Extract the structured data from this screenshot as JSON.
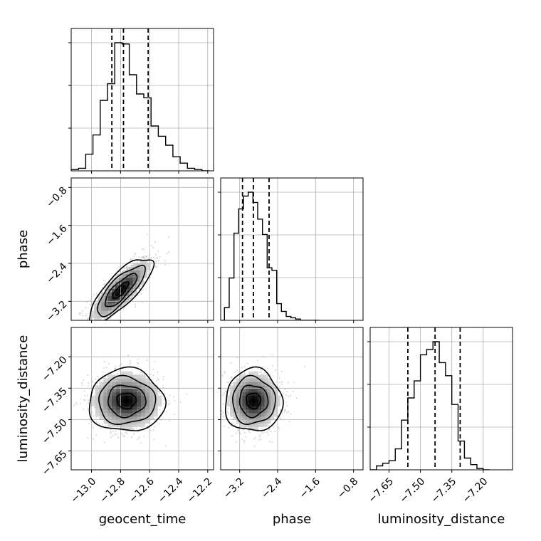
{
  "chart_data": {
    "type": "corner",
    "parameters": [
      "geocent_time",
      "phase",
      "luminosity_distance"
    ],
    "ranges": {
      "geocent_time": [
        -13.14,
        -12.16
      ],
      "phase": [
        -3.6,
        -0.6
      ],
      "luminosity_distance": [
        -7.74,
        -7.06
      ]
    },
    "ticks": {
      "geocent_time": {
        "values": [
          -13.0,
          -12.8,
          -12.6,
          -12.4,
          -12.2
        ],
        "labels": [
          "−13.0",
          "−12.8",
          "−12.6",
          "−12.4",
          "−12.2"
        ]
      },
      "phase": {
        "values": [
          -3.2,
          -2.4,
          -1.6,
          -0.8
        ],
        "labels": [
          "−3.2",
          "−2.4",
          "−1.6",
          "−0.8"
        ]
      },
      "luminosity_distance": {
        "values": [
          -7.65,
          -7.5,
          -7.35,
          -7.2
        ],
        "labels": [
          "−7.65",
          "−7.50",
          "−7.35",
          "−7.20"
        ]
      }
    },
    "quantile_lines": {
      "geocent_time": [
        -12.86,
        -12.78,
        -12.61
      ],
      "phase": [
        -3.14,
        -2.91,
        -2.58
      ],
      "luminosity_distance": [
        -7.56,
        -7.43,
        -7.31
      ]
    },
    "histograms": {
      "geocent_time": {
        "edges": [
          -13.14,
          -13.09,
          -13.04,
          -12.99,
          -12.94,
          -12.89,
          -12.84,
          -12.79,
          -12.74,
          -12.69,
          -12.64,
          -12.59,
          -12.54,
          -12.49,
          -12.44,
          -12.39,
          -12.34,
          -12.29,
          -12.24,
          -12.19
        ],
        "counts": [
          0.01,
          0.02,
          0.13,
          0.28,
          0.55,
          0.68,
          1.0,
          0.99,
          0.75,
          0.6,
          0.57,
          0.35,
          0.27,
          0.2,
          0.11,
          0.06,
          0.02,
          0.01,
          0.0
        ]
      },
      "phase": {
        "edges": [
          -3.62,
          -3.52,
          -3.42,
          -3.32,
          -3.22,
          -3.12,
          -3.02,
          -2.92,
          -2.82,
          -2.72,
          -2.62,
          -2.52,
          -2.42,
          -2.32,
          -2.22,
          -2.12,
          -2.02,
          -1.92,
          -1.82,
          -1.72,
          -1.62,
          -1.52
        ],
        "counts": [
          0.0,
          0.1,
          0.33,
          0.68,
          0.87,
          0.97,
          1.0,
          0.92,
          0.79,
          0.67,
          0.41,
          0.39,
          0.13,
          0.07,
          0.03,
          0.02,
          0.01,
          0.0,
          0.0,
          0.0,
          0.0
        ]
      },
      "luminosity_distance": {
        "edges": [
          -7.74,
          -7.71,
          -7.68,
          -7.65,
          -7.62,
          -7.59,
          -7.56,
          -7.53,
          -7.5,
          -7.47,
          -7.44,
          -7.41,
          -7.38,
          -7.35,
          -7.32,
          -7.29,
          -7.26,
          -7.23,
          -7.2,
          -7.17
        ],
        "counts": [
          0.0,
          0.03,
          0.05,
          0.07,
          0.16,
          0.38,
          0.55,
          0.68,
          0.88,
          0.92,
          0.98,
          0.82,
          0.72,
          0.5,
          0.22,
          0.09,
          0.04,
          0.01,
          0.0
        ]
      }
    },
    "posterior_2d": {
      "geocent_time_vs_phase": {
        "mean": [
          -12.8,
          -2.97
        ],
        "std": [
          0.11,
          0.35
        ],
        "correlation": 0.8
      },
      "geocent_time_vs_luminosity_distance": {
        "mean": [
          -12.76,
          -7.41
        ],
        "std": [
          0.13,
          0.075
        ],
        "correlation": 0.0
      },
      "phase_vs_luminosity_distance": {
        "mean": [
          -2.91,
          -7.41
        ],
        "std": [
          0.3,
          0.075
        ],
        "correlation": 0.0
      }
    },
    "grid": true
  }
}
